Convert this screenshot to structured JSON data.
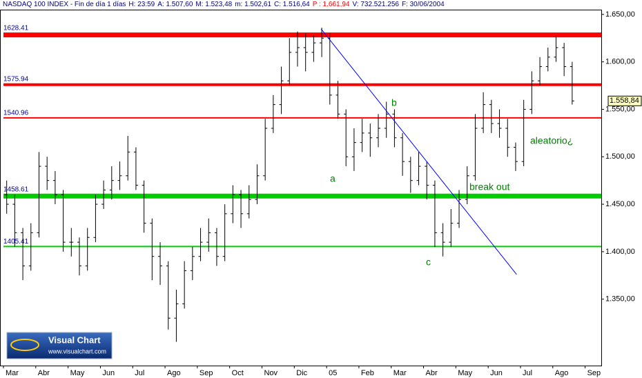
{
  "chart_data": {
    "type": "ohlc",
    "header": [
      {
        "text": "NASDAQ 100 INDEX - Fin de día 1 días",
        "color": "#000080"
      },
      {
        "text": "H: 23:59",
        "color": "#000080"
      },
      {
        "text": "A: 1.507,60",
        "color": "#000080"
      },
      {
        "text": "M: 1.523,48",
        "color": "#000080"
      },
      {
        "text": "m: 1.502,61",
        "color": "#000080"
      },
      {
        "text": "C: 1.516,64",
        "color": "#000080"
      },
      {
        "text": "P : 1.661,94",
        "color": "#ff0000"
      },
      {
        "text": "V: 732.521.256",
        "color": "#000080"
      },
      {
        "text": "F: 30/06/2004",
        "color": "#000080"
      }
    ],
    "logo": {
      "title": "Visual Chart",
      "url": "www.visualchart.com"
    },
    "xlim": [
      0,
      18.5
    ],
    "xticks": [
      {
        "value": 0,
        "label": "Mar"
      },
      {
        "value": 1,
        "label": "Abr"
      },
      {
        "value": 2,
        "label": "May"
      },
      {
        "value": 3,
        "label": "Jun"
      },
      {
        "value": 4,
        "label": "Jul"
      },
      {
        "value": 5,
        "label": "Ago"
      },
      {
        "value": 6,
        "label": "Sep"
      },
      {
        "value": 7,
        "label": "Oct"
      },
      {
        "value": 8,
        "label": "Nov"
      },
      {
        "value": 9,
        "label": "Dic"
      },
      {
        "value": 10,
        "label": "05"
      },
      {
        "value": 11,
        "label": "Feb"
      },
      {
        "value": 12,
        "label": "Mar"
      },
      {
        "value": 13,
        "label": "Abr"
      },
      {
        "value": 14,
        "label": "May"
      },
      {
        "value": 15,
        "label": "Jun"
      },
      {
        "value": 16,
        "label": "Jul"
      },
      {
        "value": 17,
        "label": "Ago"
      },
      {
        "value": 18,
        "label": "Sep"
      }
    ],
    "ylim": [
      1280,
      1655
    ],
    "yticks": [
      {
        "value": 1650,
        "label": "1.650,00"
      },
      {
        "value": 1600,
        "label": "1.600,00"
      },
      {
        "value": 1550,
        "label": "1.550,00"
      },
      {
        "value": 1500,
        "label": "1.500,00"
      },
      {
        "value": 1450,
        "label": "1.450,00"
      },
      {
        "value": 1400,
        "label": "1.400,00"
      },
      {
        "value": 1350,
        "label": "1.350,00"
      }
    ],
    "color": "#000000",
    "x": [
      0.1,
      0.35,
      0.6,
      0.85,
      1.1,
      1.35,
      1.6,
      1.85,
      2.1,
      2.35,
      2.6,
      2.85,
      3.1,
      3.35,
      3.6,
      3.85,
      4.1,
      4.35,
      4.6,
      4.85,
      5.1,
      5.35,
      5.6,
      5.85,
      6.1,
      6.35,
      6.6,
      6.85,
      7.1,
      7.35,
      7.6,
      7.85,
      8.1,
      8.35,
      8.6,
      8.85,
      9.1,
      9.35,
      9.6,
      9.85,
      10.1,
      10.35,
      10.6,
      10.85,
      11.1,
      11.35,
      11.6,
      11.85,
      12.1,
      12.35,
      12.6,
      12.85,
      13.1,
      13.35,
      13.6,
      13.85,
      14.1,
      14.35,
      14.6,
      14.85,
      15.1,
      15.35,
      15.6,
      15.85,
      16.1,
      16.35,
      16.6,
      16.85,
      17.1,
      17.35,
      17.6
    ],
    "open": [
      1460,
      1450,
      1420,
      1385,
      1420,
      1490,
      1475,
      1460,
      1410,
      1410,
      1385,
      1415,
      1450,
      1465,
      1475,
      1480,
      1505,
      1470,
      1430,
      1395,
      1385,
      1330,
      1345,
      1380,
      1395,
      1410,
      1420,
      1395,
      1440,
      1460,
      1440,
      1455,
      1480,
      1530,
      1555,
      1580,
      1610,
      1615,
      1610,
      1620,
      1625,
      1565,
      1545,
      1500,
      1515,
      1525,
      1520,
      1530,
      1545,
      1520,
      1495,
      1475,
      1490,
      1470,
      1420,
      1410,
      1430,
      1455,
      1480,
      1530,
      1555,
      1535,
      1530,
      1510,
      1495,
      1550,
      1580,
      1595,
      1605,
      1615,
      1595
    ],
    "high": [
      1475,
      1460,
      1425,
      1430,
      1505,
      1500,
      1485,
      1465,
      1425,
      1415,
      1425,
      1460,
      1475,
      1490,
      1495,
      1522,
      1510,
      1475,
      1435,
      1410,
      1390,
      1360,
      1390,
      1405,
      1425,
      1435,
      1425,
      1450,
      1470,
      1465,
      1470,
      1492,
      1540,
      1565,
      1595,
      1625,
      1632,
      1630,
      1628,
      1636,
      1630,
      1580,
      1550,
      1530,
      1540,
      1535,
      1545,
      1558,
      1550,
      1525,
      1500,
      1505,
      1495,
      1475,
      1430,
      1445,
      1465,
      1490,
      1545,
      1568,
      1560,
      1550,
      1540,
      1515,
      1560,
      1590,
      1605,
      1615,
      1628,
      1620,
      1600
    ],
    "low": [
      1440,
      1405,
      1370,
      1380,
      1415,
      1465,
      1450,
      1400,
      1395,
      1375,
      1380,
      1410,
      1445,
      1455,
      1465,
      1475,
      1465,
      1420,
      1370,
      1365,
      1318,
      1305,
      1340,
      1370,
      1390,
      1400,
      1385,
      1390,
      1430,
      1425,
      1435,
      1450,
      1475,
      1525,
      1545,
      1575,
      1595,
      1590,
      1600,
      1605,
      1555,
      1540,
      1490,
      1485,
      1505,
      1500,
      1510,
      1520,
      1510,
      1480,
      1462,
      1470,
      1455,
      1405,
      1395,
      1405,
      1425,
      1450,
      1475,
      1525,
      1525,
      1520,
      1500,
      1485,
      1490,
      1545,
      1575,
      1590,
      1600,
      1585,
      1555
    ],
    "close": [
      1450,
      1420,
      1385,
      1420,
      1490,
      1475,
      1460,
      1410,
      1410,
      1385,
      1415,
      1450,
      1465,
      1475,
      1480,
      1505,
      1470,
      1430,
      1395,
      1385,
      1330,
      1345,
      1380,
      1395,
      1410,
      1420,
      1395,
      1440,
      1460,
      1440,
      1455,
      1480,
      1530,
      1555,
      1580,
      1610,
      1615,
      1610,
      1620,
      1625,
      1565,
      1545,
      1500,
      1515,
      1525,
      1520,
      1530,
      1545,
      1520,
      1495,
      1475,
      1490,
      1470,
      1420,
      1410,
      1430,
      1455,
      1480,
      1530,
      1555,
      1535,
      1530,
      1510,
      1495,
      1550,
      1580,
      1595,
      1605,
      1615,
      1595,
      1558.84
    ],
    "last_price": {
      "value": 1558.84,
      "label": "1.558,84"
    },
    "levels": [
      {
        "value": 1628.41,
        "label": "1628.41",
        "color": "#ff0000",
        "style": "thick"
      },
      {
        "value": 1575.94,
        "label": "1575.94",
        "color": "#ff0000",
        "style": "medium"
      },
      {
        "value": 1540.96,
        "label": "1540.96",
        "color": "#ff0000",
        "style": "thin"
      },
      {
        "value": 1458.61,
        "label": "1458.61",
        "color": "#00cc00",
        "style": "thick"
      },
      {
        "value": 1405.41,
        "label": "1405.41",
        "color": "#00cc00",
        "style": "thin"
      }
    ],
    "trendline": {
      "x": [
        9.83,
        15.88
      ],
      "y": [
        1634.7,
        1376
      ],
      "color": "#0000ff"
    },
    "annotations": [
      "a",
      "b",
      "c",
      "break out",
      "aleatorio¿"
    ]
  }
}
